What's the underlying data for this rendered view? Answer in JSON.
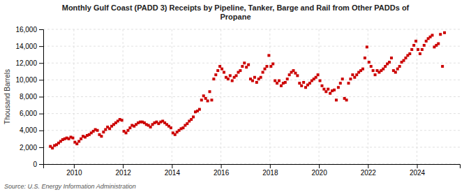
{
  "chart_data": {
    "type": "scatter",
    "title": "Monthly Gulf Coast (PADD 3) Receipts by Pipeline, Tanker, Barge and Rail from Other PADDs of\nPropane",
    "ylabel": "Thousand Barrels",
    "annotations": [
      "Source: U.S. Energy Information Administration"
    ],
    "color": "#cc0000",
    "marker": "square",
    "grid": true,
    "xlim": [
      2008.75,
      2025.75
    ],
    "xticks": [
      2010,
      2012,
      2014,
      2016,
      2018,
      2020,
      2022,
      2024
    ],
    "ylim": [
      0,
      16000
    ],
    "yticks": [
      0,
      {
        "value": 2000,
        "label": "2,000"
      },
      {
        "value": 4000,
        "label": "4,000"
      },
      {
        "value": 6000,
        "label": "6,000"
      },
      {
        "value": 8000,
        "label": "8,000"
      },
      {
        "value": 10000,
        "label": "10,000"
      },
      {
        "value": 12000,
        "label": "12,000"
      },
      {
        "value": 14000,
        "label": "14,000"
      },
      {
        "value": 16000,
        "label": "16,000"
      }
    ],
    "x": [
      2009.041667,
      2009.125,
      2009.208333,
      2009.291667,
      2009.375,
      2009.458333,
      2009.541667,
      2009.625,
      2009.708333,
      2009.791667,
      2009.875,
      2009.958333,
      2010.041667,
      2010.125,
      2010.208333,
      2010.291667,
      2010.375,
      2010.458333,
      2010.541667,
      2010.625,
      2010.708333,
      2010.791667,
      2010.875,
      2010.958333,
      2011.041667,
      2011.125,
      2011.208333,
      2011.291667,
      2011.375,
      2011.458333,
      2011.541667,
      2011.625,
      2011.708333,
      2011.791667,
      2011.875,
      2011.958333,
      2012.041667,
      2012.125,
      2012.208333,
      2012.291667,
      2012.375,
      2012.458333,
      2012.541667,
      2012.625,
      2012.708333,
      2012.791667,
      2012.875,
      2012.958333,
      2013.041667,
      2013.125,
      2013.208333,
      2013.291667,
      2013.375,
      2013.458333,
      2013.541667,
      2013.625,
      2013.708333,
      2013.791667,
      2013.875,
      2013.958333,
      2014.041667,
      2014.125,
      2014.208333,
      2014.291667,
      2014.375,
      2014.458333,
      2014.541667,
      2014.625,
      2014.708333,
      2014.791667,
      2014.875,
      2014.958333,
      2015.041667,
      2015.125,
      2015.208333,
      2015.291667,
      2015.375,
      2015.458333,
      2015.541667,
      2015.625,
      2015.708333,
      2015.791667,
      2015.875,
      2015.958333,
      2016.041667,
      2016.125,
      2016.208333,
      2016.291667,
      2016.375,
      2016.458333,
      2016.541667,
      2016.625,
      2016.708333,
      2016.791667,
      2016.875,
      2016.958333,
      2017.041667,
      2017.125,
      2017.208333,
      2017.291667,
      2017.375,
      2017.458333,
      2017.541667,
      2017.625,
      2017.708333,
      2017.791667,
      2017.875,
      2017.958333,
      2018.041667,
      2018.125,
      2018.208333,
      2018.291667,
      2018.375,
      2018.458333,
      2018.541667,
      2018.625,
      2018.708333,
      2018.791667,
      2018.875,
      2018.958333,
      2019.041667,
      2019.125,
      2019.208333,
      2019.291667,
      2019.375,
      2019.458333,
      2019.541667,
      2019.625,
      2019.708333,
      2019.791667,
      2019.875,
      2019.958333,
      2020.041667,
      2020.125,
      2020.208333,
      2020.291667,
      2020.375,
      2020.458333,
      2020.541667,
      2020.625,
      2020.708333,
      2020.791667,
      2020.875,
      2020.958333,
      2021.041667,
      2021.125,
      2021.208333,
      2021.291667,
      2021.375,
      2021.458333,
      2021.541667,
      2021.625,
      2021.708333,
      2021.791667,
      2021.875,
      2021.958333,
      2022.041667,
      2022.125,
      2022.208333,
      2022.291667,
      2022.375,
      2022.458333,
      2022.541667,
      2022.625,
      2022.708333,
      2022.791667,
      2022.875,
      2022.958333,
      2023.041667,
      2023.125,
      2023.208333,
      2023.291667,
      2023.375,
      2023.458333,
      2023.541667,
      2023.625,
      2023.708333,
      2023.791667,
      2023.875,
      2023.958333,
      2024.041667,
      2024.125,
      2024.208333,
      2024.291667,
      2024.375,
      2024.458333,
      2024.541667,
      2024.625,
      2024.708333,
      2024.791667,
      2024.875,
      2024.958333,
      2025.041667,
      2025.125
    ],
    "values": [
      2100,
      1900,
      2200,
      2300,
      2500,
      2700,
      2900,
      3000,
      3100,
      3000,
      3200,
      3100,
      2600,
      2400,
      2700,
      3000,
      3300,
      3200,
      3400,
      3500,
      3700,
      3900,
      4100,
      4000,
      3500,
      3300,
      3800,
      4100,
      4400,
      4200,
      4500,
      4700,
      4900,
      5100,
      5300,
      5200,
      3900,
      3700,
      4000,
      4300,
      4600,
      4500,
      4700,
      4900,
      5000,
      5000,
      4900,
      4700,
      4600,
      4400,
      4700,
      4900,
      5000,
      4800,
      5000,
      5100,
      4900,
      4700,
      4500,
      4300,
      3700,
      3500,
      3800,
      4000,
      4200,
      4300,
      4600,
      4800,
      5100,
      5300,
      5600,
      6200,
      6300,
      6500,
      7600,
      8100,
      7800,
      7500,
      8600,
      7600,
      10100,
      10600,
      11100,
      11600,
      11300,
      10900,
      10300,
      10100,
      10500,
      9900,
      10300,
      10500,
      10900,
      11100,
      11600,
      12000,
      11500,
      11800,
      10100,
      9900,
      10300,
      9700,
      10100,
      10300,
      10900,
      11300,
      11600,
      12900,
      11600,
      11900,
      9900,
      9600,
      9900,
      9300,
      9600,
      9700,
      10100,
      10600,
      10900,
      11100,
      10800,
      10500,
      9600,
      9300,
      9700,
      9100,
      9400,
      9600,
      9900,
      10100,
      10300,
      10600,
      9900,
      9300,
      8900,
      8600,
      8900,
      8400,
      8700,
      8800,
      7600,
      9100,
      9600,
      10100,
      7800,
      7600,
      9600,
      10100,
      10600,
      10300,
      10600,
      10900,
      11100,
      11300,
      12600,
      13900,
      12100,
      11600,
      11100,
      10600,
      11100,
      10900,
      11100,
      11300,
      11600,
      11900,
      12100,
      12600,
      11100,
      10900,
      11300,
      11600,
      12100,
      12300,
      12600,
      12900,
      13100,
      13600,
      14100,
      14600,
      13600,
      13100,
      13600,
      14100,
      14600,
      14900,
      15100,
      15300,
      13900,
      14100,
      14300,
      15400,
      11600,
      15600
    ]
  }
}
